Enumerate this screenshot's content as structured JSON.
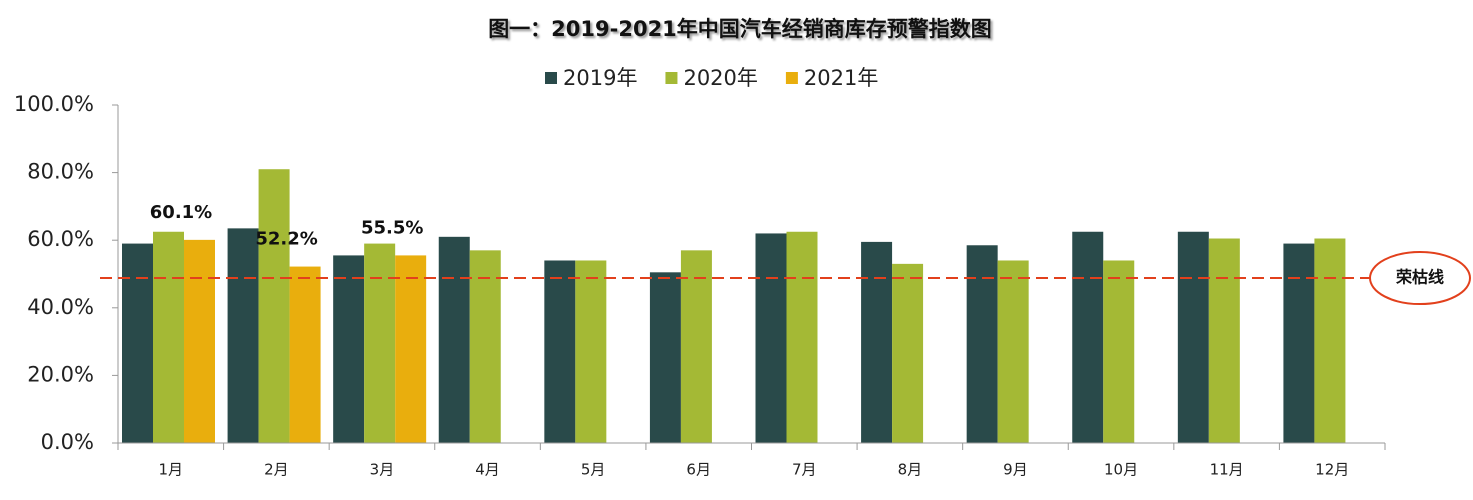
{
  "chart_data": {
    "type": "bar",
    "title": "图一：2019-2021年中国汽车经销商库存预警指数图",
    "categories": [
      "1月",
      "2月",
      "3月",
      "4月",
      "5月",
      "6月",
      "7月",
      "8月",
      "9月",
      "10月",
      "11月",
      "12月"
    ],
    "series": [
      {
        "name": "2019年",
        "color": "#294a4a",
        "values": [
          59,
          63.5,
          55.5,
          61,
          54,
          50.5,
          62,
          59.5,
          58.5,
          62.5,
          62.5,
          59
        ]
      },
      {
        "name": "2020年",
        "color": "#a4b935",
        "values": [
          62.5,
          81,
          59,
          57,
          54,
          57,
          62.5,
          53,
          54,
          54,
          60.5,
          60.5
        ]
      },
      {
        "name": "2021年",
        "color": "#e9ae0d",
        "values": [
          60.1,
          52.2,
          55.5,
          null,
          null,
          null,
          null,
          null,
          null,
          null,
          null,
          null
        ],
        "value_labels": [
          "60.1%",
          "52.2%",
          "55.5%",
          null,
          null,
          null,
          null,
          null,
          null,
          null,
          null,
          null
        ]
      }
    ],
    "ylim": [
      0,
      100
    ],
    "yticks": [
      {
        "value": 0,
        "label": "0.0%"
      },
      {
        "value": 20,
        "label": "20.0%"
      },
      {
        "value": 40,
        "label": "40.0%"
      },
      {
        "value": 60,
        "label": "60.0%"
      },
      {
        "value": 80,
        "label": "80.0%"
      },
      {
        "value": 100,
        "label": "100.0%"
      }
    ],
    "reference_line": {
      "value": 48.8,
      "label": "荣枯线",
      "color": "#e2401c"
    },
    "legend": "top"
  }
}
